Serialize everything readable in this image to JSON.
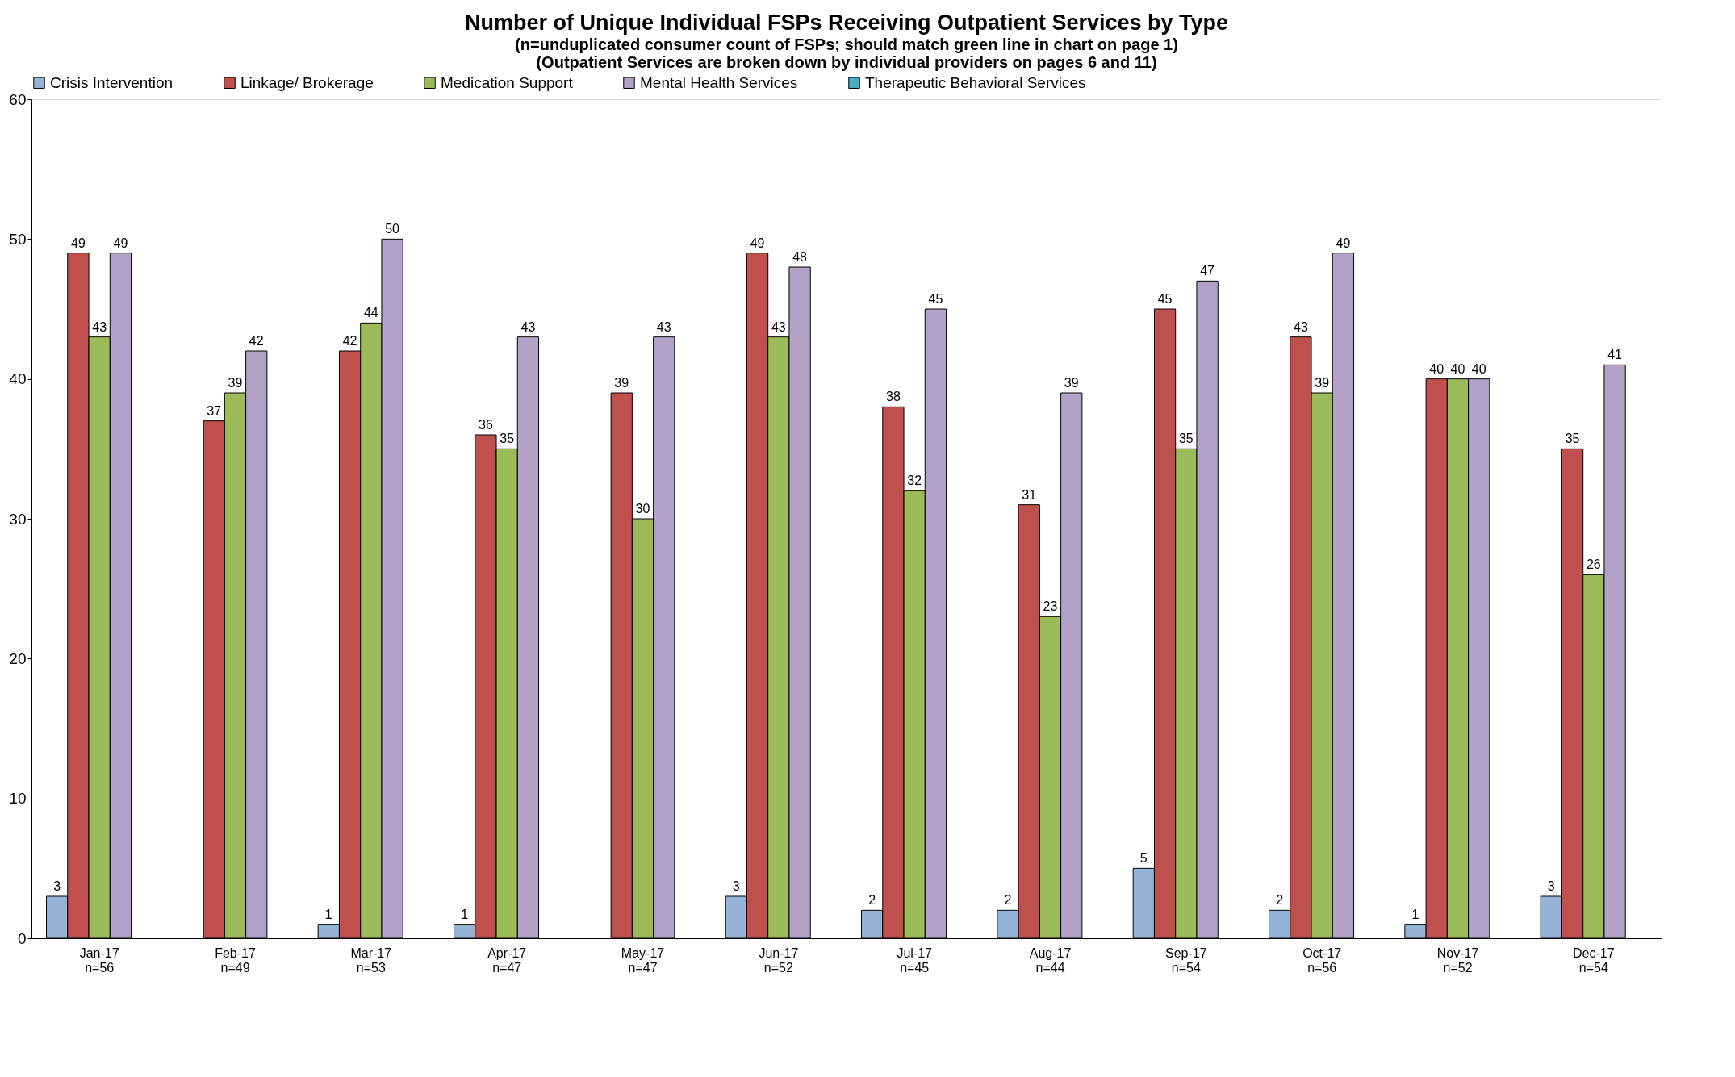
{
  "chart_data": {
    "type": "bar",
    "title": "Number of Unique Individual FSPs Receiving Outpatient Services by Type",
    "subtitle": [
      "(n=unduplicated consumer count of FSPs; should match green line in chart on page 1)",
      "(Outpatient Services are broken down by individual providers on pages 6 and 11)"
    ],
    "categories": [
      "Jan-17\nn=56",
      "Feb-17\nn=49",
      "Mar-17\nn=53",
      "Apr-17\nn=47",
      "May-17\nn=47",
      "Jun-17\nn=52",
      "Jul-17\nn=45",
      "Aug-17\nn=44",
      "Sep-17\nn=54",
      "Oct-17\nn=56",
      "Nov-17\nn=52",
      "Dec-17\nn=54"
    ],
    "series": [
      {
        "name": "Crisis Intervention",
        "color": "#95b3d7",
        "values": [
          3,
          null,
          1,
          1,
          null,
          3,
          2,
          2,
          5,
          2,
          1,
          3
        ]
      },
      {
        "name": "Linkage/ Brokerage",
        "color": "#c0504d",
        "values": [
          49,
          37,
          42,
          36,
          39,
          49,
          38,
          31,
          45,
          43,
          40,
          35
        ]
      },
      {
        "name": "Medication Support",
        "color": "#9bbb59",
        "values": [
          43,
          39,
          44,
          35,
          30,
          43,
          32,
          23,
          35,
          39,
          40,
          26
        ]
      },
      {
        "name": "Mental Health Services",
        "color": "#b3a2c7",
        "values": [
          49,
          42,
          50,
          43,
          43,
          48,
          45,
          39,
          47,
          49,
          40,
          41
        ]
      },
      {
        "name": "Therapeutic Behavioral Services",
        "color": "#4bacc6",
        "values": [
          null,
          null,
          null,
          null,
          null,
          null,
          null,
          null,
          null,
          null,
          null,
          null
        ]
      }
    ],
    "ylim": [
      0,
      60
    ],
    "yticks": [
      0,
      10,
      20,
      30,
      40,
      50,
      60
    ],
    "grid": false,
    "legend": "top",
    "data_labels": true
  }
}
